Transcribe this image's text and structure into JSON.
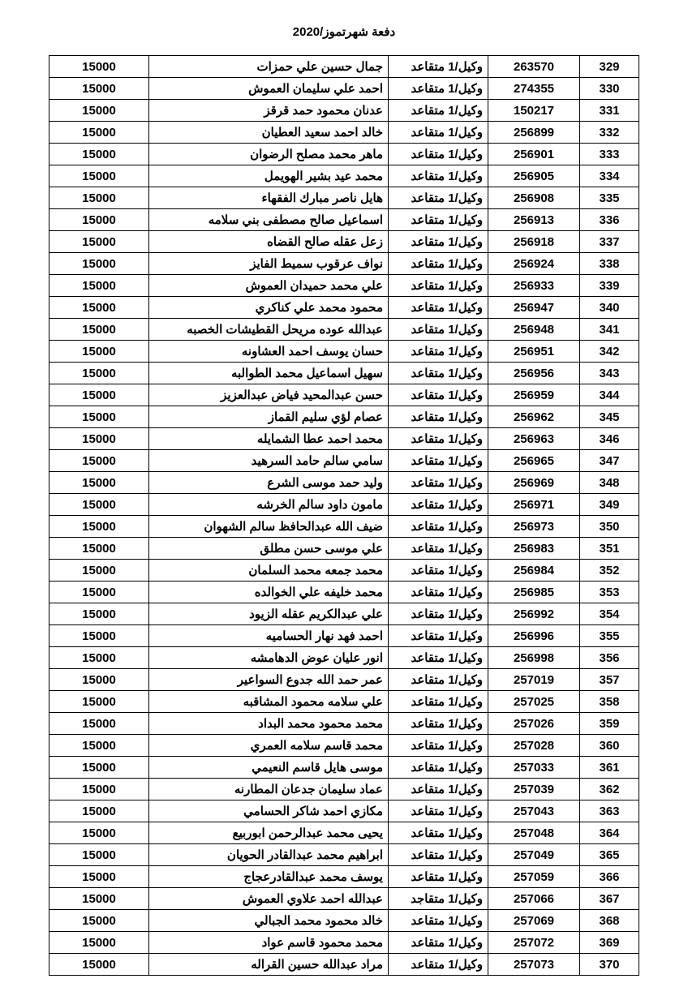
{
  "title": "دفعة شهرتموز/2020",
  "table": {
    "columns": [
      "seq",
      "id",
      "rank",
      "name",
      "amount"
    ],
    "rows": [
      {
        "seq": "329",
        "id": "263570",
        "rank": "وكيل/1 متقاعد",
        "name": "جمال حسين علي حمزات",
        "amount": "15000"
      },
      {
        "seq": "330",
        "id": "274355",
        "rank": "وكيل/1 متقاعد",
        "name": "احمد علي سليمان العموش",
        "amount": "15000"
      },
      {
        "seq": "331",
        "id": "150217",
        "rank": "وكيل/1 متقاعد",
        "name": "عدنان محمود حمد قرقز",
        "amount": "15000"
      },
      {
        "seq": "332",
        "id": "256899",
        "rank": "وكيل/1 متقاعد",
        "name": "خالد احمد سعيد العطيان",
        "amount": "15000"
      },
      {
        "seq": "333",
        "id": "256901",
        "rank": "وكيل/1 متقاعد",
        "name": "ماهر محمد مصلح الرضوان",
        "amount": "15000"
      },
      {
        "seq": "334",
        "id": "256905",
        "rank": "وكيل/1 متقاعد",
        "name": "محمد عيد بشير الهويمل",
        "amount": "15000"
      },
      {
        "seq": "335",
        "id": "256908",
        "rank": "وكيل/1 متقاعد",
        "name": "هايل ناصر مبارك الفقهاء",
        "amount": "15000"
      },
      {
        "seq": "336",
        "id": "256913",
        "rank": "وكيل/1 متقاعد",
        "name": "اسماعيل صالح مصطفى بني سلامه",
        "amount": "15000"
      },
      {
        "seq": "337",
        "id": "256918",
        "rank": "وكيل/1 متقاعد",
        "name": "زعل عقله صالح القضاه",
        "amount": "15000"
      },
      {
        "seq": "338",
        "id": "256924",
        "rank": "وكيل/1 متقاعد",
        "name": "نواف عرقوب سميط الفايز",
        "amount": "15000"
      },
      {
        "seq": "339",
        "id": "256933",
        "rank": "وكيل/1 متقاعد",
        "name": "علي محمد حميدان العموش",
        "amount": "15000"
      },
      {
        "seq": "340",
        "id": "256947",
        "rank": "وكيل/1 متقاعد",
        "name": "محمود محمد علي كناكري",
        "amount": "15000"
      },
      {
        "seq": "341",
        "id": "256948",
        "rank": "وكيل/1 متقاعد",
        "name": "عبدالله عوده مريحل القطيشات الخصبه",
        "amount": "15000"
      },
      {
        "seq": "342",
        "id": "256951",
        "rank": "وكيل/1 متقاعد",
        "name": "حسان يوسف احمد العشاونه",
        "amount": "15000"
      },
      {
        "seq": "343",
        "id": "256956",
        "rank": "وكيل/1 متقاعد",
        "name": "سهيل اسماعيل محمد الطوالبه",
        "amount": "15000"
      },
      {
        "seq": "344",
        "id": "256959",
        "rank": "وكيل/1 متقاعد",
        "name": "حسن عبدالمحيد فياض عبدالعزيز",
        "amount": "15000"
      },
      {
        "seq": "345",
        "id": "256962",
        "rank": "وكيل/1 متقاعد",
        "name": "عصام لؤي سليم القماز",
        "amount": "15000"
      },
      {
        "seq": "346",
        "id": "256963",
        "rank": "وكيل/1 متقاعد",
        "name": "محمد احمد عطا الشمايله",
        "amount": "15000"
      },
      {
        "seq": "347",
        "id": "256965",
        "rank": "وكيل/1 متقاعد",
        "name": "سامي سالم حامد السرهيد",
        "amount": "15000"
      },
      {
        "seq": "348",
        "id": "256969",
        "rank": "وكيل/1 متقاعد",
        "name": "وليد حمد موسى الشرع",
        "amount": "15000"
      },
      {
        "seq": "349",
        "id": "256971",
        "rank": "وكيل/1 متقاعد",
        "name": "مامون داود سالم الخرشه",
        "amount": "15000"
      },
      {
        "seq": "350",
        "id": "256973",
        "rank": "وكيل/1 متقاعد",
        "name": "ضيف الله عبدالحافظ سالم الشهوان",
        "amount": "15000"
      },
      {
        "seq": "351",
        "id": "256983",
        "rank": "وكيل/1 متقاعد",
        "name": "علي موسى حسن مطلق",
        "amount": "15000"
      },
      {
        "seq": "352",
        "id": "256984",
        "rank": "وكيل/1 متقاعد",
        "name": "محمد جمعه محمد السلمان",
        "amount": "15000"
      },
      {
        "seq": "353",
        "id": "256985",
        "rank": "وكيل/1 متقاعد",
        "name": "محمد خليفه علي الخوالده",
        "amount": "15000"
      },
      {
        "seq": "354",
        "id": "256992",
        "rank": "وكيل/1 متقاعد",
        "name": "علي عبدالكريم عقله الزيود",
        "amount": "15000"
      },
      {
        "seq": "355",
        "id": "256996",
        "rank": "وكيل/1 متقاعد",
        "name": "احمد فهد نهار الحساميه",
        "amount": "15000"
      },
      {
        "seq": "356",
        "id": "256998",
        "rank": "وكيل/1 متقاعد",
        "name": "انور عليان عوض الدهامشه",
        "amount": "15000"
      },
      {
        "seq": "357",
        "id": "257019",
        "rank": "وكيل/1 متقاعد",
        "name": "عمر حمد الله جدوع السواعير",
        "amount": "15000"
      },
      {
        "seq": "358",
        "id": "257025",
        "rank": "وكيل/1 متقاعد",
        "name": "علي سلامه محمود المشاقبه",
        "amount": "15000"
      },
      {
        "seq": "359",
        "id": "257026",
        "rank": "وكيل/1 متقاعد",
        "name": "محمد محمود محمد البداد",
        "amount": "15000"
      },
      {
        "seq": "360",
        "id": "257028",
        "rank": "وكيل/1 متقاعد",
        "name": "محمد قاسم سلامه العمري",
        "amount": "15000"
      },
      {
        "seq": "361",
        "id": "257033",
        "rank": "وكيل/1 متقاعد",
        "name": "موسى هايل قاسم النعيمي",
        "amount": "15000"
      },
      {
        "seq": "362",
        "id": "257039",
        "rank": "وكيل/1 متقاعد",
        "name": "عماد سليمان جدعان المطارنه",
        "amount": "15000"
      },
      {
        "seq": "363",
        "id": "257043",
        "rank": "وكيل/1 متقاعد",
        "name": "مكازي احمد شاكر الحسامي",
        "amount": "15000"
      },
      {
        "seq": "364",
        "id": "257048",
        "rank": "وكيل/1 متقاعد",
        "name": "يحيى محمد عبدالرحمن ابوربيع",
        "amount": "15000"
      },
      {
        "seq": "365",
        "id": "257049",
        "rank": "وكيل/1 متقاعد",
        "name": "ابراهيم محمد عبدالقادر الحويان",
        "amount": "15000"
      },
      {
        "seq": "366",
        "id": "257059",
        "rank": "وكيل/1 متقاعد",
        "name": "يوسف محمد عبدالقادرعجاج",
        "amount": "15000"
      },
      {
        "seq": "367",
        "id": "257066",
        "rank": "وكيل/1 متقاجد",
        "name": "عبدالله احمد علاوي العموش",
        "amount": "15000"
      },
      {
        "seq": "368",
        "id": "257069",
        "rank": "وكيل/1 متقاعد",
        "name": "خالد محمود محمد الجبالي",
        "amount": "15000"
      },
      {
        "seq": "369",
        "id": "257072",
        "rank": "وكيل/1 متقاعد",
        "name": "محمد محمود قاسم عواد",
        "amount": "15000"
      },
      {
        "seq": "370",
        "id": "257073",
        "rank": "وكيل/1 متقاعد",
        "name": "مراد عبدالله حسين القراله",
        "amount": "15000"
      }
    ]
  }
}
